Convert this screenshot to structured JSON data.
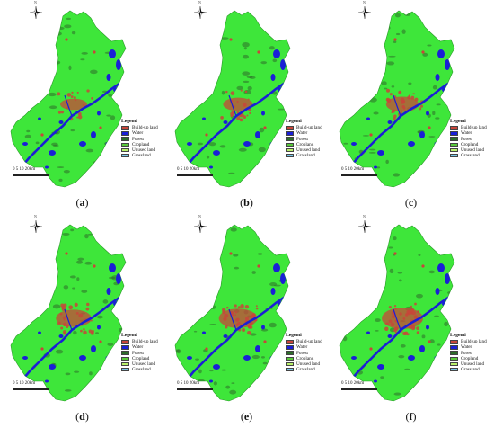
{
  "figure": {
    "panels": [
      {
        "label": "a",
        "variant": 0
      },
      {
        "label": "b",
        "variant": 1
      },
      {
        "label": "c",
        "variant": 2
      },
      {
        "label": "d",
        "variant": 3
      },
      {
        "label": "e",
        "variant": 4
      },
      {
        "label": "f",
        "variant": 5
      }
    ],
    "legend": {
      "title": "Legend",
      "items": [
        {
          "label": "Build-up land",
          "color": "#c8453a"
        },
        {
          "label": "Water",
          "color": "#1a1fd6"
        },
        {
          "label": "Forest",
          "color": "#2d6b2a"
        },
        {
          "label": "Cropland",
          "color": "#58c83a"
        },
        {
          "label": "Unused land",
          "color": "#b8f06a"
        },
        {
          "label": "Grassland",
          "color": "#7ac8e8"
        }
      ]
    },
    "scale": {
      "ticks": "0  5  10      20km"
    },
    "north_label": "N",
    "colors": {
      "land": "#3ee63a",
      "water": "#1a1fd6",
      "urban": "#c8453a",
      "forest": "#2d6b2a"
    }
  }
}
